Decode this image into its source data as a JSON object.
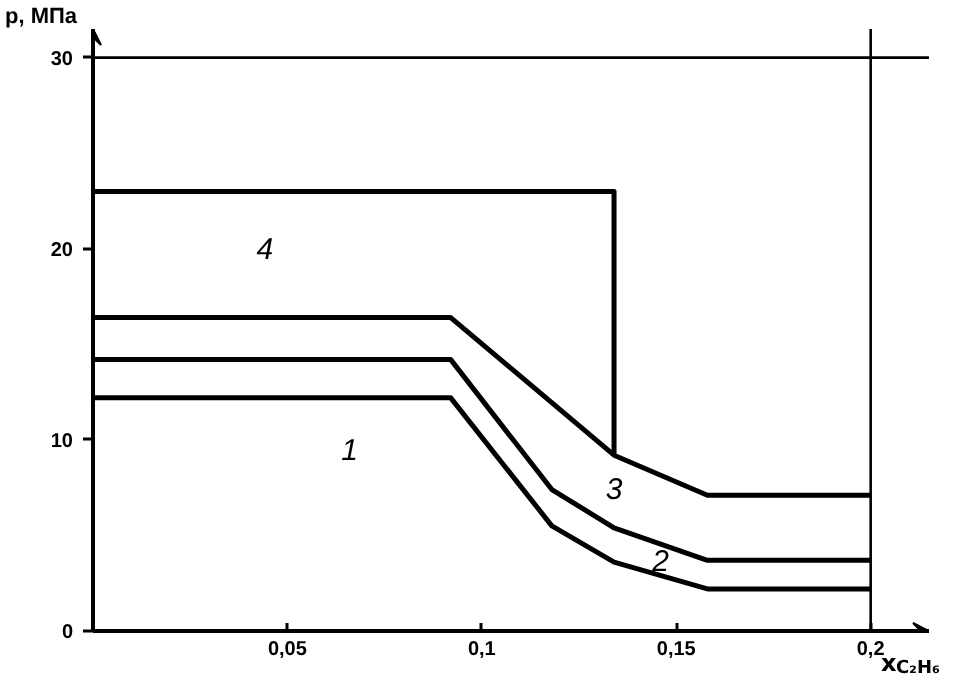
{
  "chart_data": {
    "type": "line",
    "xlabel": "x$_{C₂H₆}$",
    "ylabel": "p, МПа",
    "xlim": [
      0,
      0.215
    ],
    "ylim": [
      0,
      31.5
    ],
    "xticks": [
      {
        "value": 0.05,
        "label": "0,05"
      },
      {
        "value": 0.1,
        "label": "0,1"
      },
      {
        "value": 0.15,
        "label": "0,15"
      },
      {
        "value": 0.2,
        "label": "0,2"
      }
    ],
    "yticks": [
      0,
      10,
      20,
      30
    ],
    "series": [
      {
        "name": "1",
        "color": "#000000",
        "x": [
          0,
          0.092,
          0.118,
          0.134,
          0.158,
          0.2
        ],
        "values": [
          12.2,
          12.2,
          5.5,
          3.6,
          2.2,
          2.2
        ]
      },
      {
        "name": "2",
        "color": "#000000",
        "x": [
          0,
          0.092,
          0.118,
          0.134,
          0.158,
          0.2
        ],
        "values": [
          14.2,
          14.2,
          7.4,
          5.4,
          3.7,
          3.7
        ]
      },
      {
        "name": "3",
        "color": "#000000",
        "x": [
          0,
          0.092,
          0.134,
          0.158,
          0.2
        ],
        "values": [
          16.4,
          16.4,
          9.2,
          7.1,
          7.1
        ]
      },
      {
        "name": "4",
        "color": "#000000",
        "x": [
          0,
          0.134,
          0.134
        ],
        "values": [
          23,
          23,
          9.2
        ]
      }
    ],
    "ref_lines": [
      {
        "axis": "y",
        "value": 30,
        "color": "#000000"
      },
      {
        "axis": "x",
        "value": 0.2,
        "color": "#000000"
      }
    ],
    "grid": false,
    "legend": false,
    "marker": "none",
    "line_style": "solid"
  }
}
